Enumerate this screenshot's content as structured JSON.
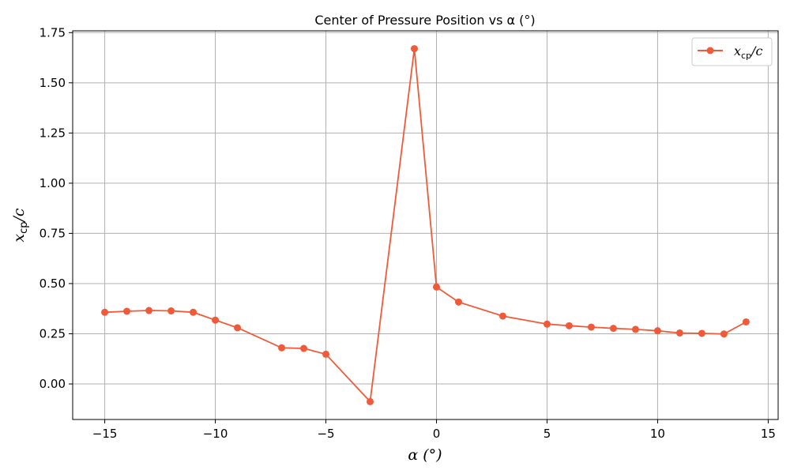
{
  "chart_data": {
    "type": "line",
    "title": "Center of Pressure Position vs α (°)",
    "xlabel": "α (°)",
    "ylabel": "xcp/c",
    "xlim": [
      -16.45,
      15.45
    ],
    "ylim": [
      -0.177,
      1.759
    ],
    "xticks": [
      -15,
      -10,
      -5,
      0,
      5,
      10,
      15
    ],
    "xtick_labels": [
      "−15",
      "−10",
      "−5",
      "0",
      "5",
      "10",
      "15"
    ],
    "yticks": [
      0.0,
      0.25,
      0.5,
      0.75,
      1.0,
      1.25,
      1.5,
      1.75
    ],
    "ytick_labels": [
      "0.00",
      "0.25",
      "0.50",
      "0.75",
      "1.00",
      "1.25",
      "1.50",
      "1.75"
    ],
    "grid": true,
    "legend_position": "top-right",
    "series": [
      {
        "name": "xcp/c",
        "color": "#f05a38",
        "marker": "circle",
        "x": [
          -15,
          -14,
          -13,
          -12,
          -11,
          -10,
          -9,
          -7,
          -6,
          -5,
          -3,
          -1,
          0,
          1,
          3,
          5,
          6,
          7,
          8,
          9,
          10,
          11,
          12,
          13,
          14
        ],
        "y": [
          0.357,
          0.362,
          0.366,
          0.364,
          0.357,
          0.318,
          0.28,
          0.18,
          0.177,
          0.148,
          -0.088,
          1.67,
          0.483,
          0.408,
          0.338,
          0.298,
          0.29,
          0.283,
          0.277,
          0.272,
          0.265,
          0.254,
          0.252,
          0.249,
          0.309
        ]
      }
    ]
  }
}
